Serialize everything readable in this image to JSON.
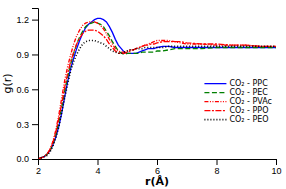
{
  "chart_data": {
    "type": "line",
    "xlabel": "r(Å)",
    "ylabel": "g(r)",
    "xlim": [
      2,
      10
    ],
    "ylim": [
      0,
      1.3
    ],
    "xticks": [
      2,
      4,
      6,
      8,
      10
    ],
    "yticks": [
      {
        "value": 0.0,
        "label": "0.0"
      },
      0.3,
      0.6,
      0.9,
      1.2
    ],
    "grid": false,
    "legend": "right",
    "x": [
      2.0,
      2.1,
      2.2,
      2.3,
      2.4,
      2.5,
      2.6,
      2.7,
      2.8,
      2.9,
      3.0,
      3.1,
      3.2,
      3.3,
      3.4,
      3.5,
      3.6,
      3.7,
      3.8,
      3.9,
      4.0,
      4.1,
      4.2,
      4.3,
      4.4,
      4.5,
      4.6,
      4.7,
      4.8,
      4.9,
      5.0,
      5.1,
      5.2,
      5.3,
      5.4,
      5.5,
      5.6,
      5.7,
      5.8,
      5.9,
      6.0,
      6.2,
      6.4,
      6.6,
      6.8,
      7.0,
      7.5,
      8.0,
      8.5,
      9.0,
      9.5,
      10.0
    ],
    "series": [
      {
        "name": "CO₂ - PPC",
        "color": "#0000FF",
        "line_style": "solid",
        "values": [
          0.0,
          0.01,
          0.02,
          0.04,
          0.07,
          0.12,
          0.19,
          0.28,
          0.4,
          0.54,
          0.67,
          0.78,
          0.87,
          0.95,
          1.02,
          1.08,
          1.13,
          1.16,
          1.18,
          1.2,
          1.21,
          1.21,
          1.2,
          1.18,
          1.14,
          1.09,
          1.03,
          0.98,
          0.95,
          0.92,
          0.91,
          0.91,
          0.91,
          0.91,
          0.92,
          0.93,
          0.94,
          0.95,
          0.95,
          0.95,
          0.96,
          0.97,
          0.97,
          0.96,
          0.96,
          0.96,
          0.96,
          0.96,
          0.96,
          0.96,
          0.96,
          0.96
        ]
      },
      {
        "name": "CO₂ - PEC",
        "color": "#008000",
        "line_style": "dashed",
        "values": [
          0.0,
          0.01,
          0.02,
          0.04,
          0.07,
          0.13,
          0.21,
          0.32,
          0.45,
          0.59,
          0.71,
          0.82,
          0.91,
          0.99,
          1.05,
          1.1,
          1.14,
          1.16,
          1.17,
          1.18,
          1.17,
          1.16,
          1.14,
          1.1,
          1.06,
          1.01,
          0.97,
          0.93,
          0.91,
          0.9,
          0.91,
          0.91,
          0.91,
          0.91,
          0.91,
          0.92,
          0.92,
          0.92,
          0.92,
          0.92,
          0.93,
          0.93,
          0.94,
          0.95,
          0.95,
          0.95,
          0.95,
          0.96,
          0.96,
          0.96,
          0.96,
          0.96
        ]
      },
      {
        "name": "CO₂ - PVAc",
        "color": "#FF0000",
        "line_style": "dash-dot-dot",
        "values": [
          0.0,
          0.01,
          0.02,
          0.04,
          0.08,
          0.15,
          0.25,
          0.38,
          0.53,
          0.68,
          0.8,
          0.9,
          0.99,
          1.06,
          1.11,
          1.15,
          1.17,
          1.18,
          1.18,
          1.18,
          1.17,
          1.15,
          1.12,
          1.08,
          1.03,
          0.99,
          0.95,
          0.93,
          0.92,
          0.92,
          0.93,
          0.94,
          0.94,
          0.95,
          0.96,
          0.97,
          0.98,
          0.99,
          1.0,
          1.01,
          1.02,
          1.02,
          1.02,
          1.01,
          1.0,
          0.99,
          0.99,
          0.98,
          0.98,
          0.98,
          0.97,
          0.97
        ]
      },
      {
        "name": "CO₂ - PPO",
        "color": "#FF0000",
        "line_style": "dash-dot",
        "values": [
          0.0,
          0.01,
          0.02,
          0.04,
          0.08,
          0.14,
          0.23,
          0.35,
          0.48,
          0.62,
          0.74,
          0.84,
          0.92,
          0.99,
          1.04,
          1.08,
          1.1,
          1.11,
          1.11,
          1.11,
          1.1,
          1.08,
          1.06,
          1.03,
          0.99,
          0.96,
          0.93,
          0.91,
          0.91,
          0.91,
          0.92,
          0.93,
          0.94,
          0.95,
          0.96,
          0.97,
          0.98,
          0.98,
          0.99,
          0.99,
          1.0,
          1.01,
          1.01,
          1.01,
          1.01,
          1.0,
          0.99,
          0.99,
          0.98,
          0.98,
          0.97,
          0.97
        ]
      },
      {
        "name": "CO₂ - PEO",
        "color": "#000000",
        "line_style": "dotted",
        "values": [
          0.0,
          0.01,
          0.02,
          0.03,
          0.06,
          0.11,
          0.18,
          0.28,
          0.4,
          0.53,
          0.65,
          0.76,
          0.84,
          0.9,
          0.95,
          0.99,
          1.01,
          1.02,
          1.02,
          1.02,
          1.01,
          1.0,
          0.99,
          0.97,
          0.95,
          0.93,
          0.92,
          0.91,
          0.91,
          0.92,
          0.93,
          0.94,
          0.94,
          0.95,
          0.95,
          0.95,
          0.96,
          0.96,
          0.96,
          0.96,
          0.96,
          0.96,
          0.97,
          0.97,
          0.97,
          0.97,
          0.97,
          0.97,
          0.97,
          0.97,
          0.97,
          0.97
        ]
      }
    ]
  }
}
